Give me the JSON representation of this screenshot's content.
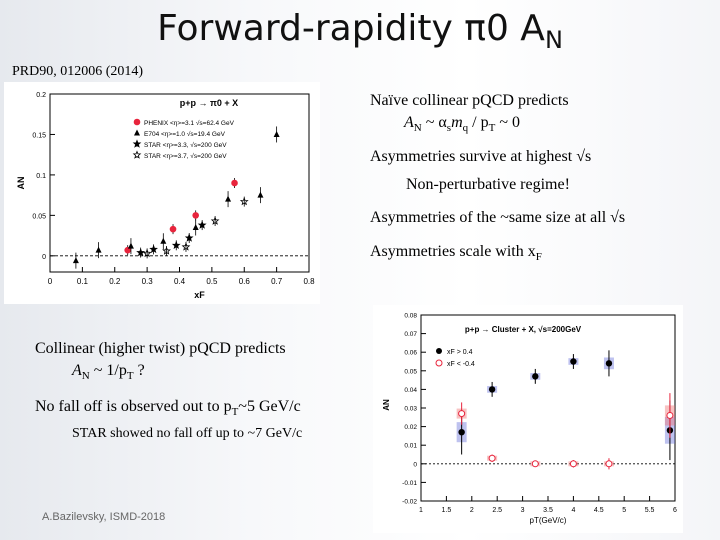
{
  "slide": {
    "title": "Forward-rapidity π0 A",
    "title_sub": "N",
    "reference": "PRD90, 012006 (2014)",
    "footer": "A.Bazilevsky, ISMD-2018"
  },
  "right_text": {
    "line1": "Naïve collinear pQCD predicts",
    "line2_pre": "A",
    "line2_sub1": "N",
    "line2_mid": " ~ α",
    "line2_sub2": "s",
    "line2_m": "m",
    "line2_sub3": "q",
    "line2_mid2": " / p",
    "line2_sub4": "T",
    "line2_end": " ~ 0",
    "line3": "Asymmetries survive at highest √s",
    "line4": "Non-perturbative regime!",
    "line5": "Asymmetries of the ~same size at all √s",
    "line6_pre": "Asymmetries scale with x",
    "line6_sub": "F"
  },
  "left_text": {
    "line1": "Collinear (higher twist) pQCD predicts",
    "line2_pre": "A",
    "line2_sub": "N",
    "line2_mid": " ~ 1/p",
    "line2_sub2": "T",
    "line2_end": " ?",
    "line3_pre": "No fall off is observed out to p",
    "line3_sub": "T",
    "line3_end": "~5 GeV/c",
    "line4": "STAR showed no fall off up to ~7 GeV/c"
  },
  "chart_data": [
    {
      "type": "scatter",
      "title": "p+p → π0 + X",
      "xlabel": "xF",
      "ylabel": "AN",
      "xlim": [
        0,
        0.8
      ],
      "ylim": [
        -0.02,
        0.2
      ],
      "xticks": [
        "0",
        "0.1",
        "0.2",
        "0.3",
        "0.4",
        "0.5",
        "0.6",
        "0.7",
        "0.8"
      ],
      "yticks": [
        "0",
        "0.05",
        "0.1",
        "0.15",
        "0.2"
      ],
      "legend": [
        "PHENIX <η>=3.1 √s=62.4 GeV",
        "E704 <η>=1.0 √s=19.4 GeV",
        "STAR <η>=3.3, √s=200 GeV",
        "STAR <η>=3.7, √s=200 GeV"
      ],
      "series": [
        {
          "name": "PHENIX",
          "color": "#e8243c",
          "x": [
            0.24,
            0.38,
            0.45,
            0.57
          ],
          "y": [
            0.007,
            0.033,
            0.05,
            0.09
          ]
        },
        {
          "name": "E704",
          "color": "#000000",
          "x": [
            0.08,
            0.15,
            0.25,
            0.35,
            0.45,
            0.55,
            0.65,
            0.7
          ],
          "y": [
            -0.006,
            0.007,
            0.012,
            0.018,
            0.035,
            0.07,
            0.075,
            0.15
          ]
        },
        {
          "name": "STAR 3.3",
          "color": "#000000",
          "x": [
            0.28,
            0.32,
            0.39,
            0.43,
            0.47
          ],
          "y": [
            0.004,
            0.008,
            0.013,
            0.022,
            0.038
          ]
        },
        {
          "name": "STAR 3.7",
          "color": "#000000",
          "x": [
            0.3,
            0.36,
            0.42,
            0.51,
            0.6
          ],
          "y": [
            0.003,
            0.006,
            0.011,
            0.043,
            0.067
          ]
        }
      ]
    },
    {
      "type": "scatter",
      "title": "p+p → Cluster + X, √s=200GeV",
      "xlabel": "pT(GeV/c)",
      "ylabel": "AN",
      "xlim": [
        1,
        6
      ],
      "ylim": [
        -0.02,
        0.08
      ],
      "xticks": [
        "1",
        "1.5",
        "2",
        "2.5",
        "3",
        "3.5",
        "4",
        "4.5",
        "5",
        "5.5",
        "6"
      ],
      "yticks": [
        "-0.02",
        "-0.01",
        "0",
        "0.01",
        "0.02",
        "0.03",
        "0.04",
        "0.05",
        "0.06",
        "0.07",
        "0.08"
      ],
      "legend": [
        "xF > 0.4",
        "xF < -0.4"
      ],
      "series": [
        {
          "name": "xF > 0.4",
          "color": "#000000",
          "x": [
            1.8,
            2.4,
            3.25,
            4.0,
            4.7,
            5.9
          ],
          "y": [
            0.017,
            0.04,
            0.047,
            0.055,
            0.054,
            0.018
          ],
          "err": [
            0.012,
            0.004,
            0.004,
            0.004,
            0.007,
            0.016
          ]
        },
        {
          "name": "xF < -0.4",
          "color": "#e8243c",
          "x": [
            1.8,
            2.4,
            3.25,
            4.0,
            4.7,
            5.9
          ],
          "y": [
            0.027,
            0.003,
            0.0,
            0.0,
            0.0,
            0.026
          ],
          "err": [
            0.006,
            0.002,
            0.001,
            0.002,
            0.003,
            0.012
          ]
        }
      ]
    }
  ]
}
